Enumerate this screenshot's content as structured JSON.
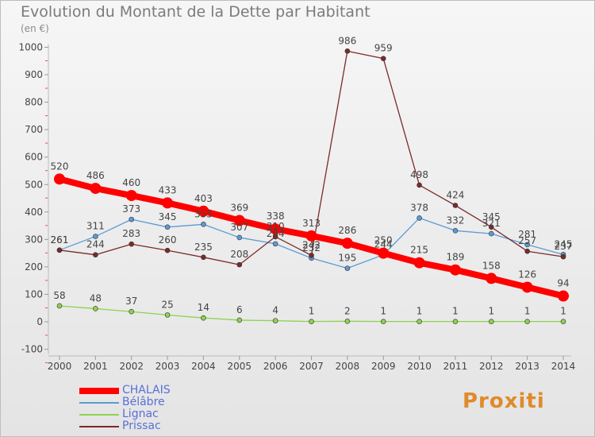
{
  "title": "Evolution du Montant de la Dette par Habitant",
  "unit": "(en €)",
  "logo": "Proxiti",
  "chart_data": {
    "type": "line",
    "title": "Evolution du Montant de la Dette par Habitant",
    "ylabel": "(en €)",
    "xlabel": "",
    "x": [
      "2000",
      "2001",
      "2002",
      "2003",
      "2004",
      "2005",
      "2006",
      "2007",
      "2008",
      "2009",
      "2010",
      "2011",
      "2012",
      "2013",
      "2014"
    ],
    "ylim": [
      -100,
      1000
    ],
    "yticks": [
      -100,
      0,
      100,
      200,
      300,
      400,
      500,
      600,
      700,
      800,
      900,
      1000
    ],
    "grid": false,
    "legend_position": "bottom-left",
    "series": [
      {
        "name": "CHALAIS",
        "color": "#ff0000",
        "values": [
          520,
          486,
          460,
          433,
          403,
          369,
          338,
          313,
          286,
          250,
          215,
          189,
          158,
          126,
          94
        ],
        "labels": [
          "520",
          "486",
          "460",
          "433",
          "403",
          "369",
          "338",
          "313",
          "286",
          "250",
          "215",
          "189",
          "158",
          "126",
          "94"
        ]
      },
      {
        "name": "Bélâbre",
        "color": "#5b9bd5",
        "values": [
          261,
          311,
          373,
          345,
          355,
          307,
          284,
          232,
          195,
          244,
          378,
          332,
          321,
          281,
          245
        ],
        "labels": [
          "261",
          "311",
          "373",
          "345",
          "355",
          "307",
          "284",
          "232",
          "195",
          "244",
          "378",
          "332",
          "321",
          "281",
          "245"
        ]
      },
      {
        "name": "Lignac",
        "color": "#8fd14f",
        "values": [
          58,
          48,
          37,
          25,
          14,
          6,
          4,
          1,
          2,
          1,
          1,
          1,
          1,
          1,
          1
        ],
        "labels": [
          "58",
          "48",
          "37",
          "25",
          "14",
          "6",
          "4",
          "1",
          "2",
          "1",
          "1",
          "1",
          "1",
          "1",
          "1"
        ]
      },
      {
        "name": "Prissac",
        "color": "#7b2a2a",
        "values": [
          261,
          244,
          283,
          260,
          235,
          208,
          310,
          242,
          986,
          959,
          498,
          424,
          345,
          257,
          237
        ],
        "labels": [
          "261",
          "244",
          "283",
          "260",
          "235",
          "208",
          "310",
          "242",
          "986",
          "959",
          "498",
          "424",
          "345",
          "257",
          "237"
        ]
      }
    ]
  }
}
